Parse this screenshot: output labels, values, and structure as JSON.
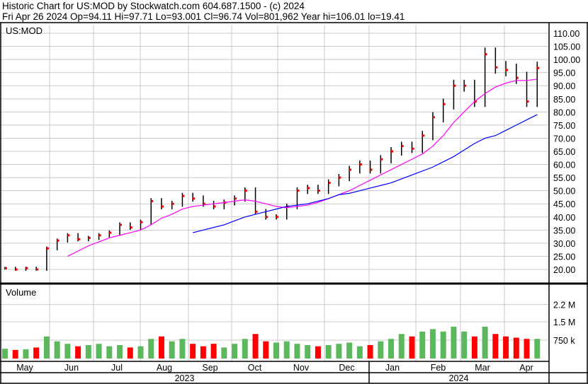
{
  "header": {
    "title": "Historic Chart for US:MOD by Stockwatch.com 604.687.1500 - (c) 2024",
    "quote": "Fri Apr 26 2024   Op=94.11  Hi=97.71  Lo=93.001  Cl=96.74  Vol=801,962   Year hi=106.01  lo=19.41"
  },
  "chart_data": {
    "type": "ohlc",
    "symbol_label": "US:MOD",
    "volume_label": "Volume",
    "colors": {
      "bar": "#000000",
      "close_tick": "#ff0000",
      "ma_short": "#ff00ff",
      "ma_long": "#0000ff",
      "vol_up": "#5cb85c",
      "vol_down": "#ff0000",
      "grid": "#c8c8c8"
    },
    "price_axis": {
      "min": 20,
      "max": 110,
      "step": 5,
      "ticks": [
        "110.00",
        "105.00",
        "100.00",
        "95.00",
        "90.00",
        "85.00",
        "80.00",
        "75.00",
        "70.00",
        "65.00",
        "60.00",
        "55.00",
        "50.00",
        "45.00",
        "40.00",
        "35.00",
        "30.00",
        "25.00",
        "20.00"
      ]
    },
    "volume_axis": {
      "ticks": [
        {
          "label": "2.2 M",
          "value": 2200
        },
        {
          "label": "1.5 M",
          "value": 1500
        },
        {
          "label": "750 k",
          "value": 750
        }
      ]
    },
    "months": [
      "May",
      "Jun",
      "Jul",
      "Aug",
      "Sep",
      "Oct",
      "Nov",
      "Dec",
      "Jan",
      "Feb",
      "Mar",
      "Apr"
    ],
    "years": [
      "2023",
      "2024"
    ],
    "closes": [
      20.5,
      20,
      20.5,
      20,
      28,
      31,
      33,
      31.5,
      32,
      33,
      34,
      37,
      36,
      38,
      46,
      44,
      45,
      48,
      47,
      45,
      44,
      45.5,
      47,
      50,
      42,
      40,
      40,
      44,
      50,
      51,
      50,
      53,
      55,
      58,
      60,
      58,
      62,
      65,
      67,
      66,
      71,
      78,
      83,
      90,
      90,
      84,
      102,
      97,
      96,
      93,
      84,
      96.74
    ],
    "volumes_k": [
      400,
      350,
      380,
      450,
      900,
      700,
      600,
      500,
      550,
      600,
      500,
      550,
      450,
      500,
      800,
      900,
      700,
      800,
      600,
      500,
      600,
      450,
      600,
      800,
      1000,
      700,
      650,
      700,
      600,
      550,
      500,
      550,
      600,
      650,
      500,
      550,
      700,
      800,
      1000,
      900,
      1100,
      1200,
      1100,
      1300,
      1100,
      900,
      1300,
      1000,
      900,
      850,
      800,
      802
    ],
    "ma_short_start": 6,
    "ma_short": [
      25,
      27,
      29,
      30.5,
      32,
      33,
      34,
      35,
      37,
      39.5,
      41,
      43,
      44,
      44.5,
      45,
      45.5,
      46,
      46.5,
      46,
      45,
      44,
      43.5,
      44,
      44.5,
      45.5,
      47,
      48.5,
      50,
      52,
      54,
      56,
      58,
      60,
      62,
      64,
      67,
      71,
      76,
      80,
      84,
      87,
      89.5,
      91,
      92,
      92,
      92.5
    ],
    "ma_long_start": 18,
    "ma_long": [
      34,
      35,
      36,
      37,
      38.5,
      40,
      41,
      42,
      43,
      44,
      44.5,
      45,
      46,
      47,
      48.5,
      49,
      50,
      51,
      52,
      53,
      54.5,
      56,
      57.5,
      59,
      61,
      63,
      65.5,
      68,
      70,
      71,
      73,
      75,
      77,
      79
    ]
  }
}
